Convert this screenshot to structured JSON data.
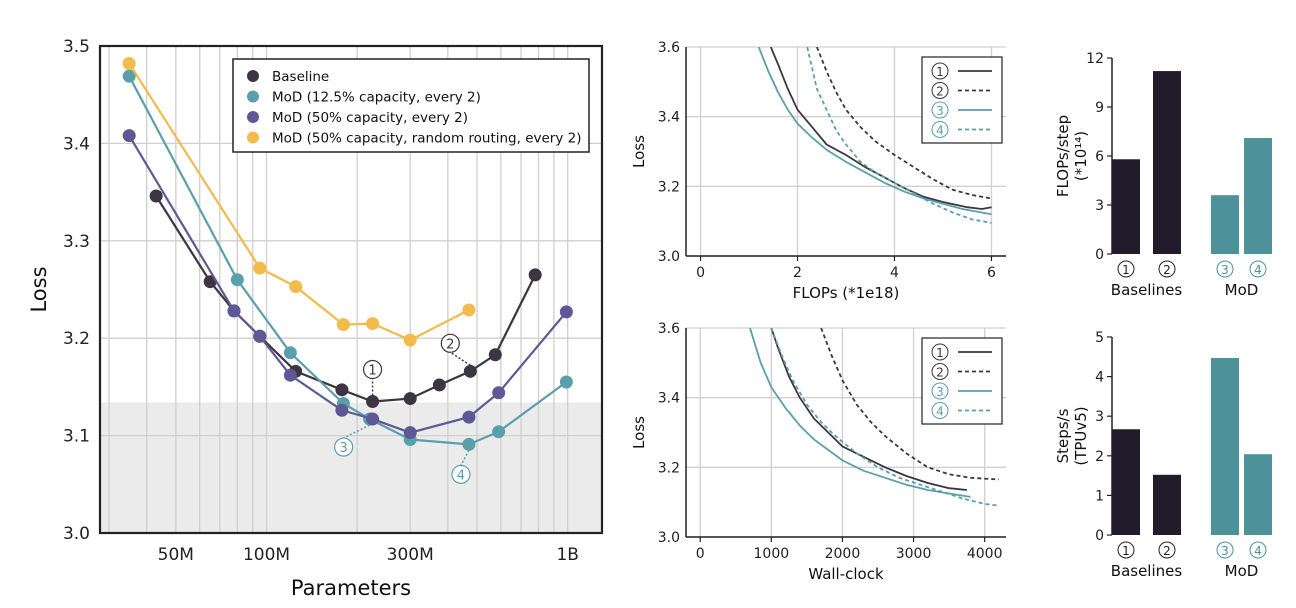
{
  "chart_data": [
    {
      "id": "main",
      "type": "line",
      "xscale": "log",
      "xlabel": "Parameters",
      "ylabel": "Loss",
      "xlim": [
        28000000,
        1300000000
      ],
      "ylim": [
        3.0,
        3.5
      ],
      "xticks": [
        {
          "v": 50000000,
          "label": "50M"
        },
        {
          "v": 100000000,
          "label": "100M"
        },
        {
          "v": 300000000,
          "label": "300M"
        },
        {
          "v": 1000000000,
          "label": "1B"
        }
      ],
      "yticks": [
        "3.0",
        "3.1",
        "3.2",
        "3.3",
        "3.4",
        "3.5"
      ],
      "grid": true,
      "shaded_region_y": [
        3.0,
        3.134
      ],
      "legend_position": "top-right",
      "series": [
        {
          "name": "Baseline",
          "color": "#3d3541",
          "x": [
            43000000,
            65000000,
            78000000,
            95000000,
            125000000,
            178000000,
            225000000,
            300000000,
            375000000,
            475000000,
            575000000,
            780000000
          ],
          "y": [
            3.346,
            3.258,
            3.228,
            3.202,
            3.166,
            3.147,
            3.135,
            3.138,
            3.152,
            3.166,
            3.183,
            3.265
          ]
        },
        {
          "name": "MoD (12.5% capacity, every 2)",
          "color": "#5a9fac",
          "x": [
            35000000,
            80000000,
            120000000,
            180000000,
            220000000,
            300000000,
            470000000,
            590000000,
            990000000
          ],
          "y": [
            3.469,
            3.26,
            3.185,
            3.133,
            3.117,
            3.096,
            3.091,
            3.104,
            3.155
          ]
        },
        {
          "name": "MoD (50% capacity, every 2)",
          "color": "#5e5994",
          "x": [
            35000000,
            78000000,
            95000000,
            120000000,
            178000000,
            225000000,
            300000000,
            470000000,
            590000000,
            990000000
          ],
          "y": [
            3.408,
            3.228,
            3.202,
            3.162,
            3.126,
            3.117,
            3.103,
            3.119,
            3.144,
            3.227
          ]
        },
        {
          "name": "MoD (50% capacity, random routing, every 2)",
          "color": "#f2bb4b",
          "x": [
            35000000,
            95000000,
            125000000,
            180000000,
            225000000,
            300000000,
            470000000
          ],
          "y": [
            3.482,
            3.272,
            3.253,
            3.214,
            3.215,
            3.198,
            3.229
          ]
        }
      ],
      "annotations": [
        {
          "label": "①",
          "series": "Baseline",
          "x": 225000000,
          "y": 3.135,
          "color": "#3d3541"
        },
        {
          "label": "②",
          "series": "Baseline",
          "x": 475000000,
          "y": 3.166,
          "color": "#3d3541"
        },
        {
          "label": "③",
          "series": "MoD (12.5% capacity, every 2)",
          "x": 220000000,
          "y": 3.117,
          "color": "#5a9fac"
        },
        {
          "label": "④",
          "series": "MoD (12.5% capacity, every 2)",
          "x": 470000000,
          "y": 3.091,
          "color": "#5a9fac"
        }
      ]
    },
    {
      "id": "flops",
      "type": "line",
      "xlabel": "FLOPs (*1e18)",
      "ylabel": "Loss",
      "xlim": [
        -0.3,
        6.3
      ],
      "ylim": [
        3.0,
        3.6
      ],
      "xticks": [
        "0",
        "2",
        "4",
        "6"
      ],
      "yticks": [
        "3.0",
        "3.2",
        "3.4",
        "3.6"
      ],
      "grid": true,
      "legend_position": "top-right",
      "series": [
        {
          "name": "①",
          "color": "#3d3541",
          "dash": "solid",
          "x": [
            1.45,
            1.6,
            1.8,
            2.0,
            2.3,
            2.6,
            3.0,
            3.4,
            3.8,
            4.2,
            4.6,
            5.0,
            5.5,
            5.8,
            6.0
          ],
          "y": [
            3.6,
            3.55,
            3.48,
            3.42,
            3.37,
            3.32,
            3.29,
            3.255,
            3.225,
            3.195,
            3.17,
            3.155,
            3.14,
            3.135,
            3.14
          ]
        },
        {
          "name": "②",
          "color": "#3d3541",
          "dash": "dashed",
          "x": [
            2.4,
            2.6,
            2.8,
            3.0,
            3.3,
            3.6,
            4.0,
            4.4,
            4.8,
            5.2,
            5.6,
            6.0
          ],
          "y": [
            3.6,
            3.53,
            3.47,
            3.42,
            3.37,
            3.33,
            3.29,
            3.255,
            3.22,
            3.19,
            3.175,
            3.165
          ]
        },
        {
          "name": "③",
          "color": "#5a9fac",
          "dash": "solid",
          "x": [
            1.2,
            1.4,
            1.6,
            1.8,
            2.0,
            2.3,
            2.6,
            3.0,
            3.4,
            3.8,
            4.2,
            4.6,
            5.0,
            5.4,
            5.8,
            6.0
          ],
          "y": [
            3.6,
            3.53,
            3.47,
            3.42,
            3.38,
            3.34,
            3.305,
            3.27,
            3.24,
            3.21,
            3.185,
            3.165,
            3.15,
            3.135,
            3.125,
            3.12
          ]
        },
        {
          "name": "④",
          "color": "#5a9fac",
          "dash": "dashed",
          "x": [
            2.2,
            2.4,
            2.6,
            2.8,
            3.0,
            3.3,
            3.6,
            4.0,
            4.4,
            4.8,
            5.2,
            5.6,
            6.0
          ],
          "y": [
            3.6,
            3.48,
            3.42,
            3.36,
            3.32,
            3.27,
            3.24,
            3.21,
            3.18,
            3.15,
            3.125,
            3.105,
            3.095
          ]
        }
      ]
    },
    {
      "id": "wallclock",
      "type": "line",
      "xlabel": "Wall-clock",
      "ylabel": "Loss",
      "xlim": [
        -200,
        4300
      ],
      "ylim": [
        3.0,
        3.6
      ],
      "xticks": [
        "0",
        "1000",
        "2000",
        "3000",
        "4000"
      ],
      "yticks": [
        "3.0",
        "3.2",
        "3.4",
        "3.6"
      ],
      "grid": true,
      "legend_position": "top-right",
      "series": [
        {
          "name": "①",
          "color": "#3d3541",
          "dash": "solid",
          "x": [
            1000,
            1100,
            1250,
            1400,
            1600,
            1800,
            2000,
            2300,
            2600,
            2900,
            3200,
            3500,
            3750
          ],
          "y": [
            3.6,
            3.54,
            3.46,
            3.4,
            3.34,
            3.3,
            3.26,
            3.23,
            3.2,
            3.175,
            3.155,
            3.14,
            3.135
          ]
        },
        {
          "name": "②",
          "color": "#3d3541",
          "dash": "dashed",
          "x": [
            1700,
            1850,
            2000,
            2200,
            2400,
            2600,
            2900,
            3200,
            3500,
            3800,
            4200
          ],
          "y": [
            3.6,
            3.52,
            3.45,
            3.38,
            3.33,
            3.29,
            3.24,
            3.2,
            3.18,
            3.17,
            3.165
          ]
        },
        {
          "name": "③",
          "color": "#5a9fac",
          "dash": "solid",
          "x": [
            700,
            850,
            1000,
            1200,
            1400,
            1600,
            1800,
            2000,
            2300,
            2600,
            2900,
            3200,
            3500,
            3800
          ],
          "y": [
            3.6,
            3.5,
            3.43,
            3.37,
            3.32,
            3.28,
            3.25,
            3.22,
            3.19,
            3.17,
            3.15,
            3.135,
            3.125,
            3.115
          ]
        },
        {
          "name": "④",
          "color": "#5a9fac",
          "dash": "dashed",
          "x": [
            1000,
            1150,
            1300,
            1500,
            1700,
            1900,
            2200,
            2500,
            2800,
            3100,
            3400,
            3700,
            4000,
            4200
          ],
          "y": [
            3.6,
            3.52,
            3.45,
            3.38,
            3.33,
            3.29,
            3.24,
            3.2,
            3.17,
            3.15,
            3.13,
            3.11,
            3.095,
            3.09
          ]
        }
      ]
    },
    {
      "id": "flops_step",
      "type": "bar",
      "ylabel": [
        "FLOPs/step",
        "(*10¹⁴)"
      ],
      "ylim": [
        0,
        12
      ],
      "yticks": [
        "0",
        "3",
        "6",
        "9",
        "12"
      ],
      "groups": [
        "Baselines",
        "MoD"
      ],
      "categories": [
        "①",
        "②",
        "③",
        "④"
      ],
      "values": [
        5.8,
        11.2,
        3.6,
        7.1
      ],
      "colors": [
        "#221b2b",
        "#221b2b",
        "#4e9299",
        "#4e9299"
      ]
    },
    {
      "id": "steps_s",
      "type": "bar",
      "ylabel": [
        "Steps/s",
        "(TPUv5)"
      ],
      "ylim": [
        0,
        5
      ],
      "yticks": [
        "0",
        "1",
        "2",
        "3",
        "4",
        "5"
      ],
      "groups": [
        "Baselines",
        "MoD"
      ],
      "categories": [
        "①",
        "②",
        "③",
        "④"
      ],
      "values": [
        2.67,
        1.52,
        4.47,
        2.04
      ],
      "colors": [
        "#221b2b",
        "#221b2b",
        "#4e9299",
        "#4e9299"
      ]
    }
  ]
}
